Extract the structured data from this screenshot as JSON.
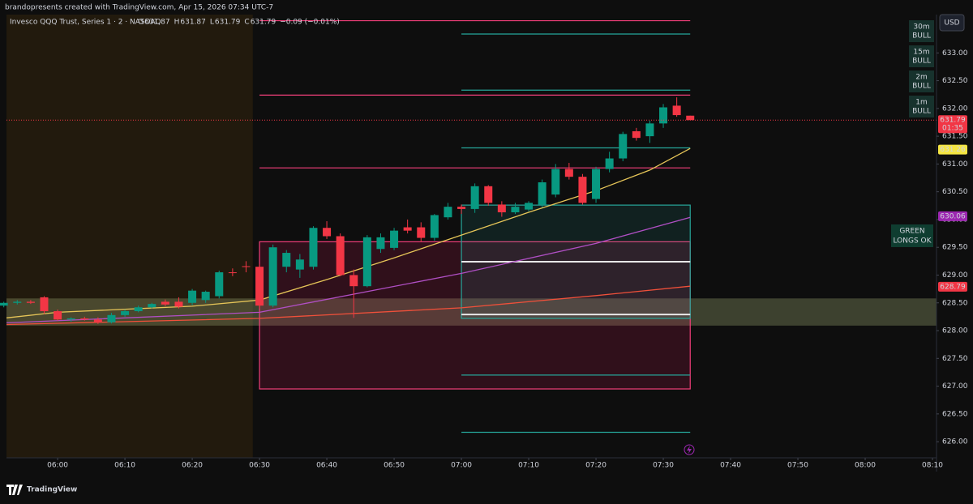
{
  "header": {
    "attribution": "brandopresents created with TradingView.com, Apr 15, 2026 07:34 UTC-7",
    "legend": {
      "symbol": "Invesco QQQ Trust, Series 1 · 2 · NASDAQ",
      "ohlc": [
        {
          "key": "O",
          "value": "631.87"
        },
        {
          "key": "H",
          "value": "631.87"
        },
        {
          "key": "L",
          "value": "631.79"
        },
        {
          "key": "C",
          "value": "631.79"
        }
      ],
      "change": "−0.09 (−0.01%)"
    },
    "currency": "USD",
    "badges": [
      {
        "tf": "30m",
        "state": "BULL"
      },
      {
        "tf": "15m",
        "state": "BULL"
      },
      {
        "tf": "2m",
        "state": "BULL"
      },
      {
        "tf": "1m",
        "state": "BULL"
      }
    ],
    "signal": [
      "GREEN",
      "LONGS OK"
    ],
    "brand": "TradingView"
  },
  "chart_data": {
    "type": "candlestick",
    "up_color": "#089981",
    "down_color": "#f23645",
    "xlim": [
      352.4,
      490.6
    ],
    "ylim": [
      625.71,
      633.69
    ],
    "grid": false,
    "xticks": [
      {
        "value": 360,
        "label": "06:00"
      },
      {
        "value": 370,
        "label": "06:10"
      },
      {
        "value": 380,
        "label": "06:20"
      },
      {
        "value": 390,
        "label": "06:30"
      },
      {
        "value": 400,
        "label": "06:40"
      },
      {
        "value": 410,
        "label": "06:50"
      },
      {
        "value": 420,
        "label": "07:00"
      },
      {
        "value": 430,
        "label": "07:10"
      },
      {
        "value": 440,
        "label": "07:20"
      },
      {
        "value": 450,
        "label": "07:30"
      },
      {
        "value": 460,
        "label": "07:40"
      },
      {
        "value": 470,
        "label": "07:50"
      },
      {
        "value": 480,
        "label": "08:00"
      },
      {
        "value": 490,
        "label": "08:10"
      }
    ],
    "yticks": [
      {
        "value": 633,
        "label": "633.00"
      },
      {
        "value": 632.5,
        "label": "632.50"
      },
      {
        "value": 632,
        "label": "632.00"
      },
      {
        "value": 631.5,
        "label": "631.50"
      },
      {
        "value": 631,
        "label": "631.00"
      },
      {
        "value": 630.5,
        "label": "630.50"
      },
      {
        "value": 630,
        "label": "630.00"
      },
      {
        "value": 629.5,
        "label": "629.50"
      },
      {
        "value": 629,
        "label": "629.00"
      },
      {
        "value": 628.5,
        "label": "628.50"
      },
      {
        "value": 628,
        "label": "628.00"
      },
      {
        "value": 627.5,
        "label": "627.50"
      },
      {
        "value": 627,
        "label": "627.00"
      },
      {
        "value": 626.5,
        "label": "626.50"
      },
      {
        "value": 626,
        "label": "626.00"
      }
    ],
    "candles": {
      "x": [
        352,
        354,
        356,
        358,
        360,
        362,
        364,
        366,
        368,
        370,
        372,
        374,
        376,
        378,
        380,
        382,
        384,
        386,
        388,
        390,
        392,
        394,
        396,
        398,
        400,
        402,
        404,
        406,
        408,
        410,
        412,
        414,
        416,
        418,
        420,
        422,
        424,
        426,
        428,
        430,
        432,
        434,
        436,
        438,
        440,
        442,
        444,
        446,
        448,
        450,
        452,
        454
      ],
      "open": [
        628.45,
        628.5,
        628.52,
        628.6,
        628.35,
        628.2,
        628.22,
        628.2,
        628.15,
        628.28,
        628.35,
        628.42,
        628.52,
        628.52,
        628.5,
        628.55,
        628.62,
        629.05,
        629.16,
        629.15,
        628.45,
        629.15,
        629.1,
        629.15,
        629.85,
        629.7,
        629.0,
        628.8,
        629.47,
        629.49,
        629.86,
        629.86,
        629.67,
        630.04,
        630.23,
        630.19,
        630.6,
        630.27,
        630.13,
        630.18,
        630.27,
        630.45,
        630.91,
        630.77,
        630.37,
        630.91,
        631.1,
        631.59,
        631.5,
        631.73,
        632.05,
        631.87
      ],
      "high": [
        628.52,
        628.55,
        628.55,
        628.62,
        628.38,
        628.24,
        628.25,
        628.24,
        628.32,
        628.38,
        628.45,
        628.5,
        628.56,
        628.6,
        628.75,
        628.72,
        629.08,
        629.12,
        629.25,
        629.2,
        629.55,
        629.45,
        629.38,
        629.88,
        629.97,
        629.75,
        629.1,
        629.72,
        629.75,
        629.85,
        630.0,
        629.95,
        630.1,
        630.3,
        630.27,
        630.65,
        630.62,
        630.33,
        630.3,
        630.33,
        630.72,
        631.0,
        631.02,
        630.82,
        630.95,
        631.22,
        631.58,
        631.65,
        631.78,
        632.08,
        632.2,
        631.87
      ],
      "low": [
        628.42,
        628.47,
        628.48,
        628.3,
        628.18,
        628.16,
        628.18,
        628.12,
        628.13,
        628.25,
        628.33,
        628.4,
        628.44,
        628.4,
        628.46,
        628.5,
        628.58,
        628.98,
        629.05,
        628.4,
        628.42,
        629.05,
        628.95,
        629.1,
        629.65,
        628.98,
        628.23,
        628.78,
        629.4,
        629.45,
        629.75,
        629.6,
        629.62,
        630.0,
        630.1,
        630.12,
        630.25,
        630.05,
        630.1,
        630.15,
        630.22,
        630.4,
        630.72,
        630.27,
        630.3,
        630.85,
        631.05,
        631.42,
        631.38,
        631.65,
        631.85,
        631.79
      ],
      "close": [
        628.5,
        628.52,
        628.5,
        628.35,
        628.2,
        628.22,
        628.2,
        628.15,
        628.28,
        628.35,
        628.42,
        628.48,
        628.47,
        628.43,
        628.72,
        628.7,
        629.05,
        629.04,
        629.15,
        628.45,
        629.5,
        629.4,
        629.28,
        629.85,
        629.7,
        629.0,
        628.8,
        629.68,
        629.68,
        629.8,
        629.8,
        629.67,
        630.08,
        630.23,
        630.19,
        630.6,
        630.3,
        630.13,
        630.23,
        630.3,
        630.67,
        630.91,
        630.77,
        630.3,
        630.91,
        631.1,
        631.54,
        631.47,
        631.73,
        632.02,
        631.88,
        631.79
      ]
    },
    "lines": [
      {
        "color": "#e6c558",
        "x": [
          352.4,
          360,
          380,
          390,
          400,
          410,
          420,
          430,
          440,
          448,
          454
        ],
        "values": [
          628.23,
          628.33,
          628.44,
          628.55,
          628.92,
          629.31,
          629.72,
          630.13,
          630.52,
          630.89,
          631.28
        ]
      },
      {
        "color": "#b04fc4",
        "x": [
          352.4,
          390,
          420,
          440,
          454
        ],
        "values": [
          628.14,
          628.33,
          629.03,
          629.57,
          630.04
        ]
      },
      {
        "color": "#f0503a",
        "x": [
          352.4,
          390,
          420,
          440,
          454
        ],
        "values": [
          628.11,
          628.22,
          628.41,
          628.63,
          628.8
        ]
      }
    ],
    "zones": [
      {
        "x": [
          352.4,
          389
        ],
        "fill": "#221a0d"
      },
      {
        "ylim": [
          628.09,
          628.58
        ],
        "fill": "rgba(150,160,110,0.35)"
      },
      {
        "x": [
          390,
          454
        ],
        "ylim": [
          626.95,
          629.6
        ],
        "fill": "rgba(233,30,99,0.16)",
        "stroke": "#f23f7a"
      },
      {
        "x": [
          420,
          454
        ],
        "ylim": [
          628.22,
          630.26
        ],
        "fill": "rgba(38,166,154,0.13)",
        "stroke": "#26a69a"
      }
    ],
    "levels": [
      {
        "value": 633.58,
        "x": [
          390,
          454
        ],
        "color": "#f23f7a"
      },
      {
        "value": 632.24,
        "x": [
          390,
          454
        ],
        "color": "#f23f7a"
      },
      {
        "value": 630.93,
        "x": [
          390,
          454
        ],
        "color": "#f23f7a"
      },
      {
        "value": 633.34,
        "x": [
          420,
          454
        ],
        "color": "#26a69a"
      },
      {
        "value": 632.33,
        "x": [
          420,
          454
        ],
        "color": "#26a69a"
      },
      {
        "value": 631.29,
        "x": [
          420,
          454
        ],
        "color": "#26a69a"
      },
      {
        "value": 627.2,
        "x": [
          420,
          454
        ],
        "color": "#26a69a"
      },
      {
        "value": 626.17,
        "x": [
          420,
          454
        ],
        "color": "#26a69a"
      },
      {
        "value": 629.24,
        "x": [
          420,
          454
        ],
        "color": "#e8e8e8"
      },
      {
        "value": 628.29,
        "x": [
          420,
          454
        ],
        "color": "#e8e8e8"
      }
    ],
    "last_price_line": true,
    "price_labels": [
      {
        "value": 631.79,
        "bg": "#f23645",
        "fg": "#ffffff",
        "countdown": "01:35"
      },
      {
        "value": 631.26,
        "bg": "#f5e642",
        "fg": "#000000"
      },
      {
        "value": 630.06,
        "bg": "#9c27b0",
        "fg": "#ffffff"
      },
      {
        "value": 628.79,
        "bg": "#f23645",
        "fg": "#ffffff"
      }
    ]
  }
}
